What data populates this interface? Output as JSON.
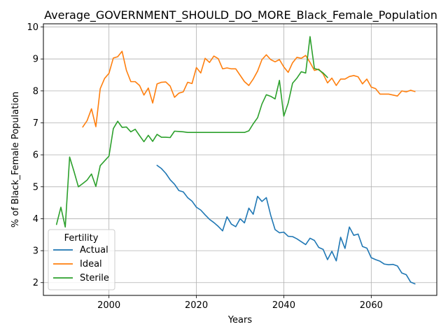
{
  "chart_data": {
    "type": "line",
    "title": "Average_GOVERNMENT_SHOULD_DO_MORE_Black_Female_Population",
    "xlabel": "Years",
    "ylabel": "% of Black_Female Population",
    "xlim": [
      1985,
      2075
    ],
    "ylim": [
      1.6,
      10.1
    ],
    "xticks": [
      2000,
      2020,
      2040,
      2060
    ],
    "yticks": [
      2,
      3,
      4,
      5,
      6,
      7,
      8,
      9,
      10
    ],
    "grid": true,
    "legend": {
      "title": "Fertility",
      "position": "lower-left"
    },
    "colors": {
      "Actual": "#1f77b4",
      "Ideal": "#ff7f0e",
      "Sterile": "#2ca02c"
    },
    "series": [
      {
        "name": "Actual",
        "x": [
          2011,
          2012,
          2013,
          2014,
          2015,
          2016,
          2017,
          2018,
          2019,
          2020,
          2021,
          2022,
          2023,
          2024,
          2025,
          2026,
          2027,
          2028,
          2029,
          2030,
          2031,
          2032,
          2033,
          2034,
          2035,
          2036,
          2037,
          2038,
          2039,
          2040,
          2041,
          2042,
          2043,
          2044,
          2045,
          2046,
          2047,
          2048,
          2049,
          2050,
          2051,
          2052,
          2053,
          2054,
          2055,
          2056,
          2057,
          2058,
          2059,
          2060,
          2061,
          2062,
          2063,
          2064,
          2065,
          2066,
          2067,
          2068,
          2069,
          2070
        ],
        "y": [
          5.67,
          5.57,
          5.42,
          5.22,
          5.08,
          4.88,
          4.84,
          4.66,
          4.55,
          4.36,
          4.27,
          4.12,
          3.98,
          3.88,
          3.76,
          3.62,
          4.06,
          3.83,
          3.75,
          4.0,
          3.87,
          4.33,
          4.14,
          4.7,
          4.54,
          4.66,
          4.11,
          3.66,
          3.56,
          3.58,
          3.45,
          3.44,
          3.37,
          3.28,
          3.19,
          3.39,
          3.32,
          3.1,
          3.04,
          2.72,
          2.98,
          2.68,
          3.42,
          3.07,
          3.74,
          3.48,
          3.52,
          3.13,
          3.08,
          2.78,
          2.72,
          2.67,
          2.58,
          2.56,
          2.57,
          2.52,
          2.3,
          2.25,
          2.02,
          1.96
        ]
      },
      {
        "name": "Ideal",
        "x": [
          1994,
          1995,
          1996,
          1997,
          1998,
          1999,
          2000,
          2001,
          2002,
          2003,
          2004,
          2005,
          2006,
          2007,
          2008,
          2009,
          2010,
          2011,
          2012,
          2013,
          2014,
          2015,
          2016,
          2017,
          2018,
          2019,
          2020,
          2021,
          2022,
          2023,
          2024,
          2025,
          2026,
          2027,
          2028,
          2029,
          2030,
          2031,
          2032,
          2033,
          2034,
          2035,
          2036,
          2037,
          2038,
          2039,
          2040,
          2041,
          2042,
          2043,
          2044,
          2045,
          2046,
          2047,
          2048,
          2049,
          2050,
          2051,
          2052,
          2053,
          2054,
          2055,
          2056,
          2057,
          2058,
          2059,
          2060,
          2061,
          2062,
          2063,
          2064,
          2065,
          2066,
          2067,
          2068,
          2069,
          2070
        ],
        "y": [
          6.87,
          7.07,
          7.44,
          6.88,
          8.07,
          8.39,
          8.55,
          9.03,
          9.07,
          9.24,
          8.64,
          8.29,
          8.29,
          8.17,
          7.87,
          8.09,
          7.62,
          8.22,
          8.27,
          8.28,
          8.15,
          7.8,
          7.93,
          7.97,
          8.27,
          8.23,
          8.73,
          8.56,
          9.02,
          8.89,
          9.09,
          9.01,
          8.69,
          8.72,
          8.69,
          8.69,
          8.49,
          8.29,
          8.17,
          8.37,
          8.62,
          8.98,
          9.13,
          8.98,
          8.91,
          8.98,
          8.75,
          8.58,
          8.88,
          9.05,
          9.02,
          9.11,
          8.89,
          8.64,
          8.68,
          8.53,
          8.25,
          8.4,
          8.17,
          8.37,
          8.37,
          8.45,
          8.48,
          8.44,
          8.22,
          8.37,
          8.12,
          8.07,
          7.9,
          7.9,
          7.9,
          7.87,
          7.84,
          8.0,
          7.97,
          8.02,
          7.98
        ]
      },
      {
        "name": "Sterile",
        "x": [
          1988,
          1989,
          1990,
          1991,
          1992,
          1993,
          1994,
          1995,
          1996,
          1997,
          1998,
          1999,
          2000,
          2001,
          2002,
          2003,
          2004,
          2005,
          2006,
          2007,
          2008,
          2009,
          2010,
          2011,
          2012,
          2013,
          2014,
          2015,
          2016,
          2017,
          2018,
          2019,
          2020,
          2021,
          2022,
          2023,
          2024,
          2025,
          2026,
          2027,
          2028,
          2029,
          2030,
          2031,
          2032,
          2033,
          2034,
          2035,
          2036,
          2037,
          2038,
          2039,
          2040,
          2041,
          2042,
          2043,
          2044,
          2045,
          2046,
          2047,
          2048,
          2049,
          2050
        ],
        "y": [
          3.82,
          4.36,
          3.74,
          5.93,
          5.48,
          5.0,
          5.1,
          5.21,
          5.4,
          5.01,
          5.66,
          5.81,
          5.96,
          6.82,
          7.05,
          6.86,
          6.87,
          6.72,
          6.8,
          6.6,
          6.41,
          6.61,
          6.42,
          6.64,
          6.55,
          6.55,
          6.54,
          6.74,
          6.73,
          6.72,
          6.7,
          6.7,
          6.7,
          6.7,
          6.7,
          6.7,
          6.7,
          6.7,
          6.7,
          6.7,
          6.7,
          6.7,
          6.7,
          6.7,
          6.75,
          6.97,
          7.16,
          7.59,
          7.88,
          7.83,
          7.75,
          8.33,
          7.21,
          7.62,
          8.24,
          8.4,
          8.6,
          8.56,
          9.7,
          8.7,
          8.66,
          8.56,
          8.42
        ]
      }
    ]
  }
}
